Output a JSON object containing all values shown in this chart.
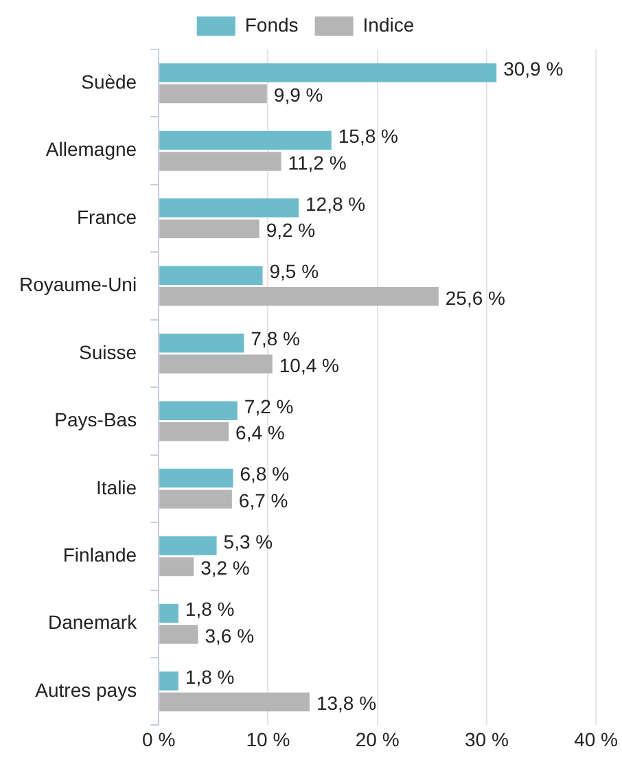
{
  "chart_data": {
    "type": "bar",
    "orientation": "horizontal",
    "categories": [
      "Suède",
      "Allemagne",
      "France",
      "Royaume-Uni",
      "Suisse",
      "Pays-Bas",
      "Italie",
      "Finlande",
      "Danemark",
      "Autres pays"
    ],
    "series": [
      {
        "name": "Fonds",
        "color": "#6dbccb",
        "values": [
          30.9,
          15.8,
          12.8,
          9.5,
          7.8,
          7.2,
          6.8,
          5.3,
          1.8,
          1.8
        ],
        "value_labels": [
          "30,9 %",
          "15,8 %",
          "12,8 %",
          "9,5 %",
          "7,8 %",
          "7,2 %",
          "6,8 %",
          "5,3 %",
          "1,8 %",
          "1,8 %"
        ]
      },
      {
        "name": "Indice",
        "color": "#b5b5b5",
        "values": [
          9.9,
          11.2,
          9.2,
          25.6,
          10.4,
          6.4,
          6.7,
          3.2,
          3.6,
          13.8
        ],
        "value_labels": [
          "9,9 %",
          "11,2 %",
          "9,2 %",
          "25,6 %",
          "10,4 %",
          "6,4 %",
          "6,7 %",
          "3,2 %",
          "3,6 %",
          "13,8 %"
        ]
      }
    ],
    "xlim": [
      0,
      40
    ],
    "xticks": [
      {
        "value": 0,
        "label": "0 %"
      },
      {
        "value": 10,
        "label": "10 %"
      },
      {
        "value": 20,
        "label": "20 %"
      },
      {
        "value": 30,
        "label": "30 %"
      },
      {
        "value": 40,
        "label": "40 %"
      }
    ],
    "grid": "x",
    "legend": "top"
  }
}
